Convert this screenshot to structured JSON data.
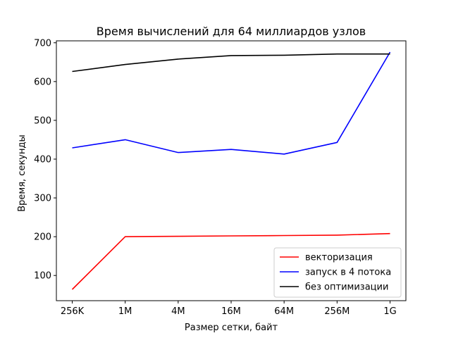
{
  "chart_data": {
    "type": "line",
    "title": "Время вычислений для 64 миллиардов узлов",
    "xlabel": "Размер сетки, байт",
    "ylabel": "Время, секунды",
    "categories": [
      "256K",
      "1M",
      "4M",
      "16M",
      "64M",
      "256M",
      "1G"
    ],
    "ylim": [
      35,
      705
    ],
    "yticks": [
      100,
      200,
      300,
      400,
      500,
      600,
      700
    ],
    "grid": false,
    "legend_position": "lower-right",
    "series": [
      {
        "name": "векторизация",
        "color": "#ff0000",
        "values": [
          64,
          200,
          201,
          202,
          203,
          204,
          208
        ]
      },
      {
        "name": "запуск в 4 потока",
        "color": "#0000ff",
        "values": [
          429,
          450,
          417,
          425,
          413,
          443,
          676
        ]
      },
      {
        "name": "без оптимизации",
        "color": "#000000",
        "values": [
          626,
          644,
          658,
          667,
          668,
          671,
          671
        ]
      }
    ]
  }
}
